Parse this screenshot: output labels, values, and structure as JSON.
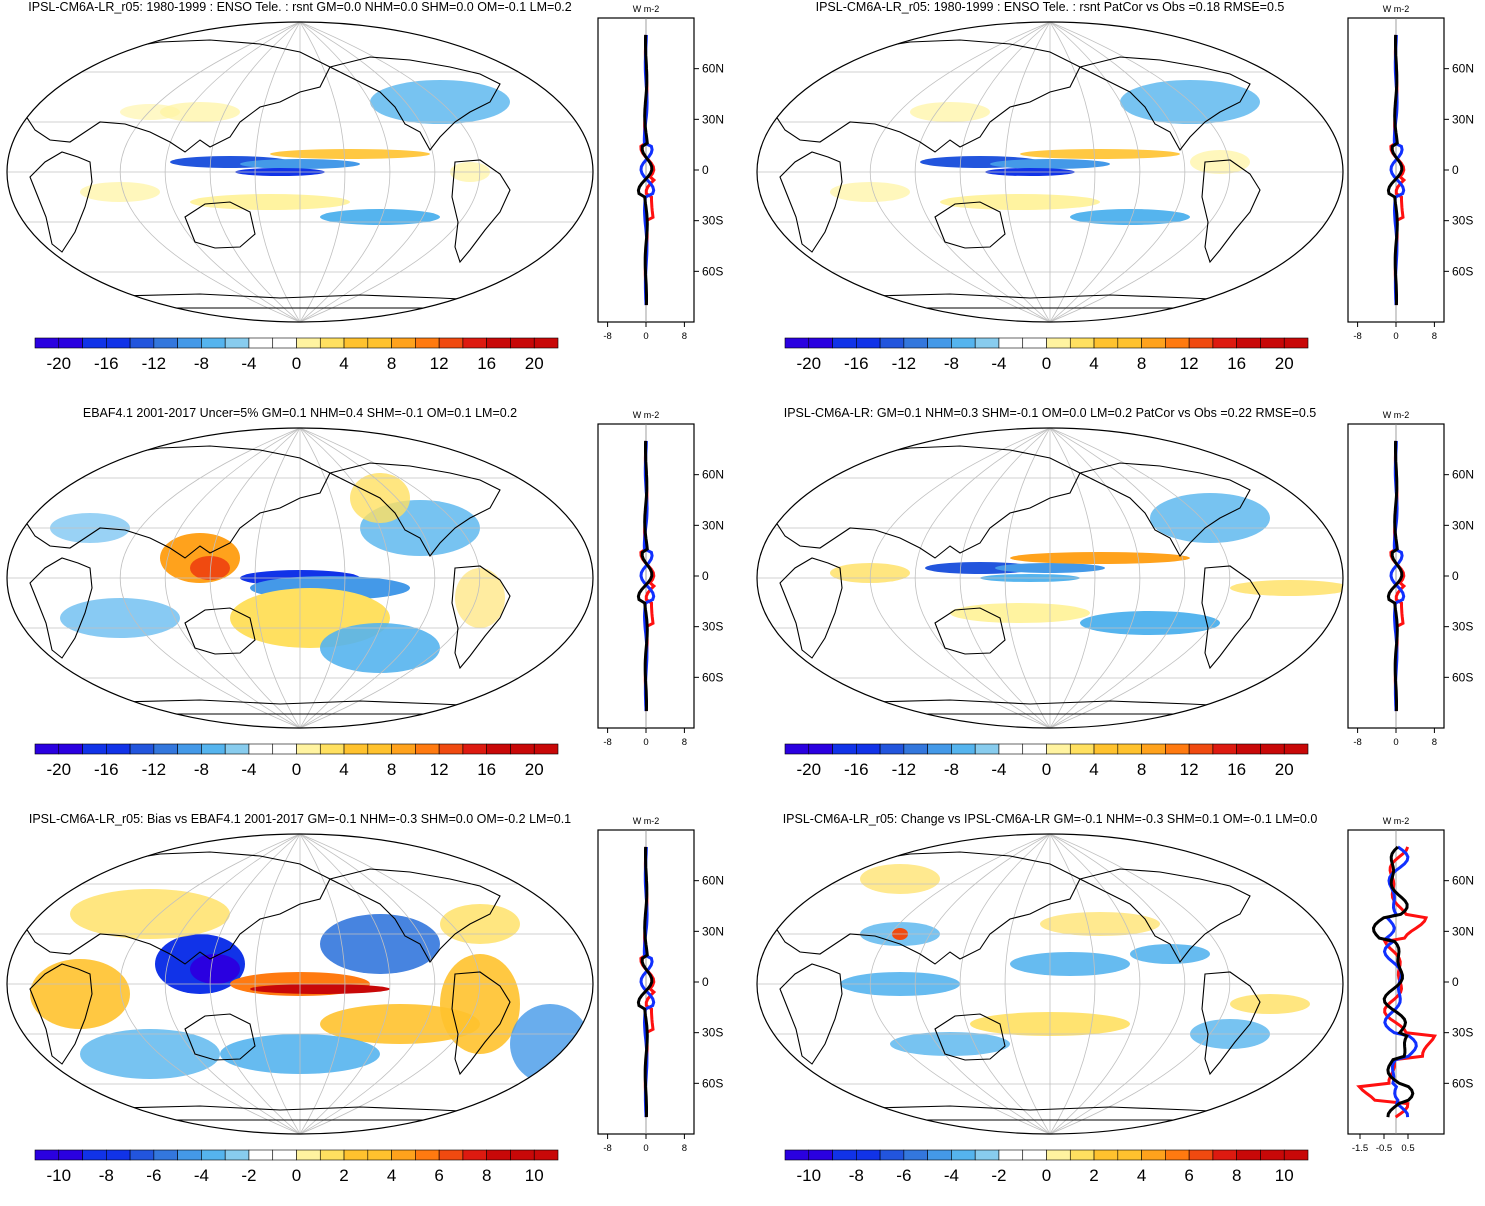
{
  "colors": {
    "scale20": [
      "#2a00e0",
      "#1133e8",
      "#2255dd",
      "#3377dd",
      "#4499e8",
      "#55b4ee",
      "#88ccee",
      "#ffffff",
      "#ffffff",
      "#fff3a0",
      "#ffe060",
      "#ffc22e",
      "#ffa21c",
      "#ff7a10",
      "#f04a10",
      "#dd1a10",
      "#c80808"
    ],
    "coast": "#000000",
    "grid": "#c0c0c0",
    "line_red": "#ff1010",
    "line_blue": "#1030ff",
    "line_black": "#000000"
  },
  "panels": [
    {
      "id": "p1",
      "title": "IPSL-CM6A-LR_r05: 1980-1999 : ENSO Tele. : rsnt GM=0.0 NHM=0.0 SHM=0.0 OM=-0.1 LM=0.2",
      "unit": "W m-2",
      "zonal_ticks": [
        "-8",
        "0",
        "8"
      ],
      "lat_labels": [
        "60N",
        "30N",
        "0",
        "30S",
        "60S"
      ],
      "colorbar_labels": [
        "-20",
        "-16",
        "-12",
        "-8",
        "-4",
        "0",
        "4",
        "8",
        "12",
        "16",
        "20"
      ]
    },
    {
      "id": "p2",
      "title": "IPSL-CM6A-LR_r05: 1980-1999 : ENSO Tele. : rsnt PatCor vs Obs =0.18 RMSE=0.5",
      "unit": "W m-2",
      "zonal_ticks": [
        "-8",
        "0",
        "8"
      ],
      "lat_labels": [
        "60N",
        "30N",
        "0",
        "30S",
        "60S"
      ],
      "colorbar_labels": [
        "-20",
        "-16",
        "-12",
        "-8",
        "-4",
        "0",
        "4",
        "8",
        "12",
        "16",
        "20"
      ]
    },
    {
      "id": "p3",
      "title": "EBAF4.1 2001-2017 Uncer=5% GM=0.1 NHM=0.4 SHM=-0.1 OM=0.1 LM=0.2",
      "unit": "W m-2",
      "zonal_ticks": [
        "-8",
        "0",
        "8"
      ],
      "lat_labels": [
        "60N",
        "30N",
        "0",
        "30S",
        "60S"
      ],
      "colorbar_labels": [
        "-20",
        "-16",
        "-12",
        "-8",
        "-4",
        "0",
        "4",
        "8",
        "12",
        "16",
        "20"
      ]
    },
    {
      "id": "p4",
      "title": "IPSL-CM6A-LR: GM=0.1 NHM=0.3 SHM=-0.1 OM=0.0 LM=0.2 PatCor vs Obs =0.22 RMSE=0.5",
      "unit": "W m-2",
      "zonal_ticks": [
        "-8",
        "0",
        "8"
      ],
      "lat_labels": [
        "60N",
        "30N",
        "0",
        "30S",
        "60S"
      ],
      "colorbar_labels": [
        "-20",
        "-16",
        "-12",
        "-8",
        "-4",
        "0",
        "4",
        "8",
        "12",
        "16",
        "20"
      ]
    },
    {
      "id": "p5",
      "title": "IPSL-CM6A-LR_r05: Bias vs EBAF4.1 2001-2017 GM=-0.1 NHM=-0.3 SHM=0.0 OM=-0.2 LM=0.1",
      "unit": "W m-2",
      "zonal_ticks": [
        "-8",
        "0",
        "8"
      ],
      "lat_labels": [
        "60N",
        "30N",
        "0",
        "30S",
        "60S"
      ],
      "colorbar_labels": [
        "-10",
        "-8",
        "-6",
        "-4",
        "-2",
        "0",
        "2",
        "4",
        "6",
        "8",
        "10"
      ]
    },
    {
      "id": "p6",
      "title": "IPSL-CM6A-LR_r05: Change vs IPSL-CM6A-LR GM=-0.1 NHM=-0.3 SHM=0.1 OM=-0.1 LM=0.0",
      "unit": "W m-2",
      "zonal_ticks": [
        "-1.5",
        "-0.5",
        "0.5"
      ],
      "lat_labels": [
        "60N",
        "30N",
        "0",
        "30S",
        "60S"
      ],
      "colorbar_labels": [
        "-10",
        "-8",
        "-6",
        "-4",
        "-2",
        "0",
        "2",
        "4",
        "6",
        "8",
        "10"
      ]
    }
  ]
}
